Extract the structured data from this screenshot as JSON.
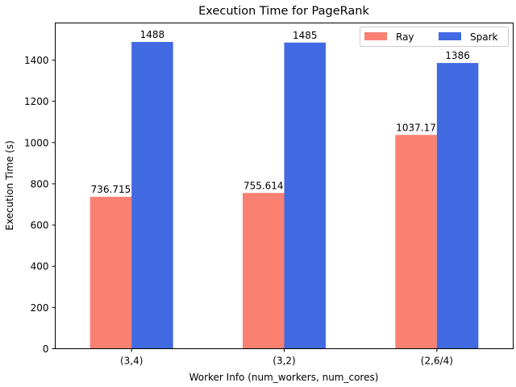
{
  "chart_data": {
    "type": "bar",
    "title": "Execution Time for PageRank",
    "xlabel": "Worker Info (num_workers, num_cores)",
    "ylabel": "Execution Time (s)",
    "categories": [
      "(3,4)",
      "(3,2)",
      "(2,6/4)"
    ],
    "series": [
      {
        "name": "Ray",
        "values": [
          736.715,
          755.614,
          1037.17
        ],
        "labels": [
          "736.715",
          "755.614",
          "1037.17"
        ],
        "color": "#fa8072"
      },
      {
        "name": "Spark",
        "values": [
          1488,
          1485,
          1386
        ],
        "labels": [
          "1488",
          "1485",
          "1386"
        ],
        "color": "#4169e1"
      }
    ],
    "ylim": [
      0,
      1580
    ],
    "yticks": [
      0,
      200,
      400,
      600,
      800,
      1000,
      1200,
      1400
    ],
    "grid": false,
    "legend": "top-right"
  }
}
